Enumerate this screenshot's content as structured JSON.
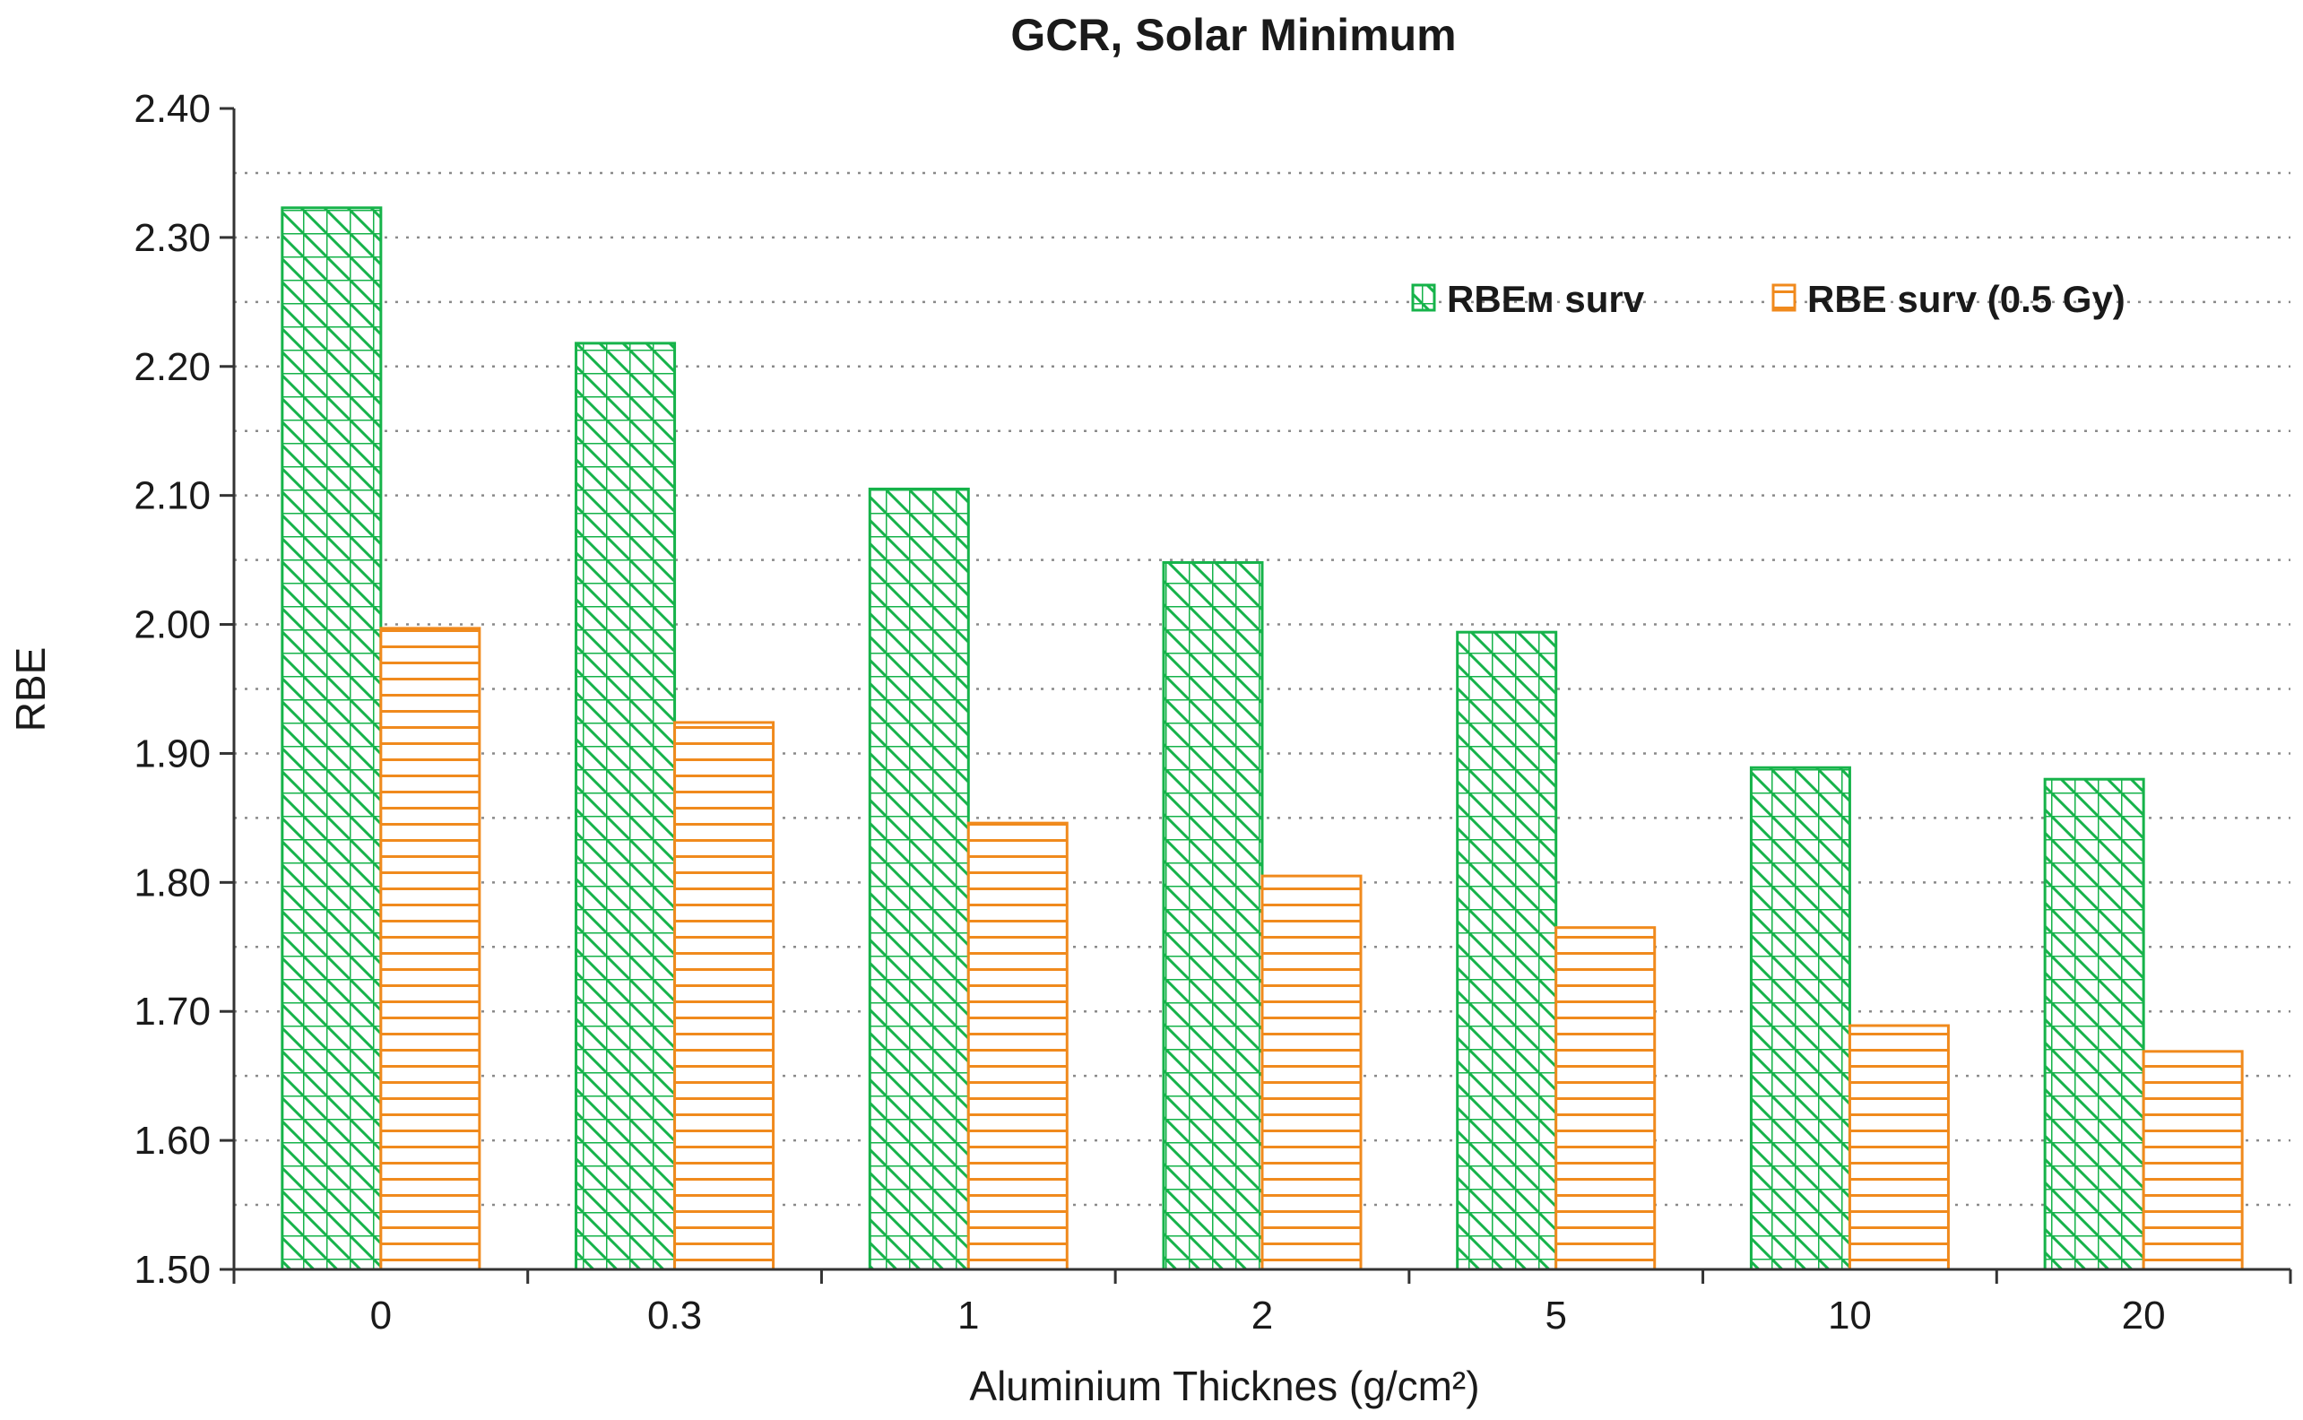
{
  "chart_data": {
    "type": "bar",
    "title": "GCR, Solar Minimum",
    "xlabel": "Aluminium Thicknes (g/cm²)",
    "ylabel": "RBE",
    "ylim": [
      1.5,
      2.4
    ],
    "yticks": [
      "1.50",
      "1.60",
      "1.70",
      "1.80",
      "1.90",
      "2.00",
      "2.10",
      "2.20",
      "2.30",
      "2.40"
    ],
    "categories": [
      "0",
      "0.3",
      "1",
      "2",
      "5",
      "10",
      "20"
    ],
    "series": [
      {
        "name": "RBEм surv",
        "color": "#16b34a",
        "pattern": "crosshatch-diagonal",
        "values": [
          2.323,
          2.218,
          2.105,
          2.048,
          1.994,
          1.889,
          1.88
        ]
      },
      {
        "name": "RBE surv (0.5 Gy)",
        "color": "#f08a1d",
        "pattern": "horizontal",
        "values": [
          1.997,
          1.924,
          1.846,
          1.805,
          1.765,
          1.689,
          1.669
        ]
      }
    ],
    "grid": true,
    "legend_position": "top-right"
  }
}
